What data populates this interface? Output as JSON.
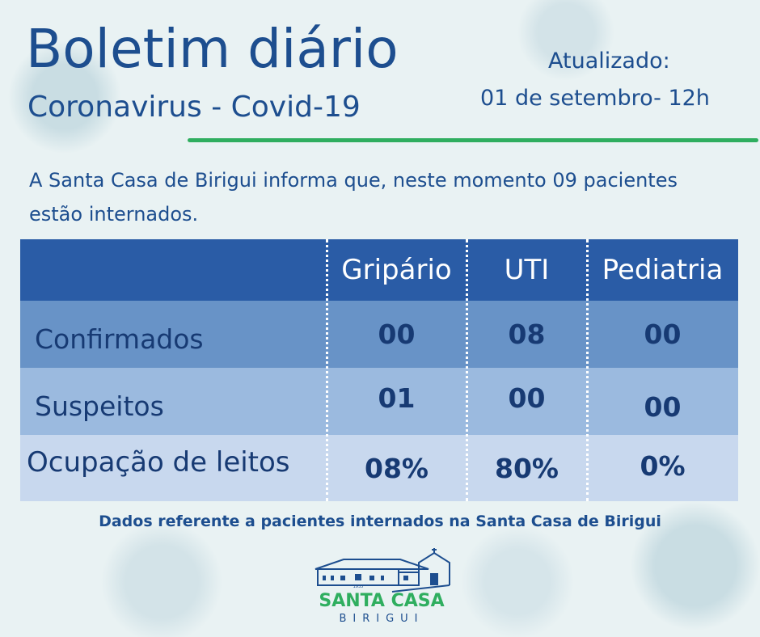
{
  "header": {
    "title": "Boletim diário",
    "subtitle": "Coronavirus - Covid-19",
    "updated_label": "Atualizado:",
    "updated_value": "01 de setembro- 12h"
  },
  "intro": "A Santa Casa de Birigui informa que, neste momento 09 pacientes estão internados.",
  "table": {
    "columns": [
      "Gripário",
      "UTI",
      "Pediatria"
    ],
    "rows": [
      {
        "label": "Confirmados",
        "values": [
          "00",
          "08",
          "00"
        ]
      },
      {
        "label": "Suspeitos",
        "values": [
          "01",
          "00",
          "00"
        ]
      },
      {
        "label": "Ocupação de leitos",
        "values": [
          "08%",
          "80%",
          "0%"
        ]
      }
    ]
  },
  "footer": "Dados referente a pacientes internados na Santa Casa de Birigui",
  "logo": {
    "name": "SANTA CASA",
    "city": "BIRIGUI",
    "year": "1935"
  },
  "colors": {
    "accent_green": "#2fae5f",
    "header_blue": "#2a5ca6",
    "text_navy": "#173a73"
  }
}
